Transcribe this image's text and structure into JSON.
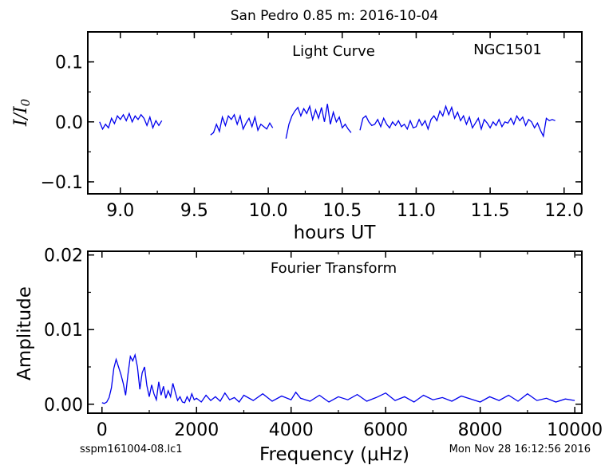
{
  "figure": {
    "title": "San Pedro 0.85 m:  2016-10-04",
    "footer_left": "sspm161004-08.lc1",
    "footer_right": "Mon Nov 28 16:12:56 2016"
  },
  "chart_data": [
    {
      "type": "line",
      "panel": "light-curve",
      "label": "Light Curve",
      "object_label": "NGC1501",
      "xlabel": "hours UT",
      "ylabel": "I/I0",
      "xlim": [
        8.78,
        12.12
      ],
      "ylim": [
        -0.12,
        0.15
      ],
      "x_ticks": [
        9.0,
        9.5,
        10.0,
        10.5,
        11.0,
        11.5,
        12.0
      ],
      "x_tick_labels": [
        "9.0",
        "9.5",
        "10.0",
        "10.5",
        "11.0",
        "11.5",
        "12.0"
      ],
      "y_ticks": [
        -0.1,
        0.0,
        0.1
      ],
      "y_tick_labels": [
        "−0.1",
        "0.0",
        "0.1"
      ],
      "color": "#0000ee",
      "segments": [
        {
          "x": [
            8.86,
            8.88,
            8.9,
            8.92,
            8.94,
            8.96,
            8.98,
            9.0,
            9.02,
            9.04,
            9.06,
            9.08,
            9.1,
            9.12,
            9.14,
            9.16,
            9.18,
            9.2,
            9.22,
            9.24,
            9.26,
            9.28
          ],
          "y": [
            0.0,
            -0.012,
            -0.004,
            -0.01,
            0.006,
            -0.003,
            0.01,
            0.004,
            0.012,
            0.002,
            0.014,
            0.0,
            0.01,
            0.004,
            0.012,
            0.006,
            -0.006,
            0.008,
            -0.01,
            0.002,
            -0.006,
            0.002
          ]
        },
        {
          "x": [
            9.61,
            9.63,
            9.65,
            9.67,
            9.69,
            9.71,
            9.73,
            9.75,
            9.77,
            9.79,
            9.81,
            9.83,
            9.85,
            9.87,
            9.89,
            9.91,
            9.93,
            9.95,
            9.97,
            9.99,
            10.01,
            10.03
          ],
          "y": [
            -0.022,
            -0.018,
            -0.004,
            -0.016,
            0.008,
            -0.006,
            0.01,
            0.004,
            0.012,
            -0.004,
            0.01,
            -0.012,
            -0.002,
            0.006,
            -0.008,
            0.008,
            -0.014,
            -0.004,
            -0.008,
            -0.012,
            -0.002,
            -0.01
          ]
        },
        {
          "x": [
            10.12,
            10.14,
            10.16,
            10.18,
            10.2,
            10.22,
            10.24,
            10.26,
            10.28,
            10.3,
            10.32,
            10.34,
            10.36,
            10.38,
            10.4,
            10.42,
            10.44,
            10.46,
            10.48,
            10.5,
            10.52,
            10.54,
            10.56
          ],
          "y": [
            -0.028,
            -0.004,
            0.01,
            0.018,
            0.024,
            0.01,
            0.022,
            0.014,
            0.026,
            0.004,
            0.02,
            0.006,
            0.024,
            0.0,
            0.03,
            -0.004,
            0.016,
            0.0,
            0.008,
            -0.01,
            -0.004,
            -0.012,
            -0.018
          ]
        },
        {
          "x": [
            10.62,
            10.64,
            10.66,
            10.68,
            10.7,
            10.72,
            10.74,
            10.76,
            10.78,
            10.8,
            10.82,
            10.84,
            10.86,
            10.88,
            10.9,
            10.92,
            10.94,
            10.96,
            10.98,
            11.0,
            11.02,
            11.04,
            11.06,
            11.08,
            11.1,
            11.12,
            11.14,
            11.16,
            11.18,
            11.2,
            11.22,
            11.24,
            11.26,
            11.28,
            11.3,
            11.32,
            11.34,
            11.36,
            11.38,
            11.4,
            11.42,
            11.44,
            11.46,
            11.48,
            11.5,
            11.52,
            11.54,
            11.56,
            11.58,
            11.6,
            11.62,
            11.64,
            11.66,
            11.68,
            11.7,
            11.72,
            11.74,
            11.76,
            11.78,
            11.8,
            11.82,
            11.84,
            11.86,
            11.88,
            11.9,
            11.92,
            11.94
          ],
          "y": [
            -0.014,
            0.006,
            0.01,
            0.0,
            -0.006,
            -0.004,
            0.004,
            -0.008,
            0.006,
            -0.004,
            -0.01,
            0.0,
            -0.006,
            0.002,
            -0.008,
            -0.004,
            -0.012,
            0.002,
            -0.01,
            -0.008,
            0.004,
            -0.006,
            0.002,
            -0.012,
            0.004,
            0.01,
            0.002,
            0.018,
            0.01,
            0.026,
            0.012,
            0.024,
            0.006,
            0.016,
            0.002,
            0.01,
            -0.004,
            0.008,
            -0.01,
            -0.002,
            0.006,
            -0.012,
            0.004,
            -0.002,
            -0.01,
            0.0,
            -0.006,
            0.004,
            -0.008,
            0.0,
            -0.002,
            0.006,
            -0.004,
            0.01,
            0.002,
            0.008,
            -0.006,
            0.004,
            0.0,
            -0.01,
            -0.002,
            -0.014,
            -0.024,
            0.006,
            0.002,
            0.004,
            0.002
          ]
        }
      ]
    },
    {
      "type": "line",
      "panel": "fourier-transform",
      "label": "Fourier Transform",
      "xlabel": "Frequency (μHz)",
      "ylabel": "Amplitude",
      "xlim": [
        -300,
        10150
      ],
      "ylim": [
        -0.0012,
        0.0205
      ],
      "x_ticks": [
        0,
        2000,
        4000,
        6000,
        8000,
        10000
      ],
      "x_tick_labels": [
        "0",
        "2000",
        "4000",
        "6000",
        "8000",
        "10000"
      ],
      "y_ticks": [
        0.0,
        0.01,
        0.02
      ],
      "y_tick_labels": [
        "0.00",
        "0.01",
        "0.02"
      ],
      "color": "#0000ee",
      "x": [
        0,
        50,
        100,
        150,
        200,
        250,
        300,
        350,
        400,
        450,
        500,
        550,
        600,
        650,
        700,
        750,
        800,
        850,
        900,
        950,
        1000,
        1050,
        1100,
        1150,
        1200,
        1250,
        1300,
        1350,
        1400,
        1450,
        1500,
        1550,
        1600,
        1650,
        1700,
        1750,
        1800,
        1850,
        1900,
        1950,
        2000,
        2100,
        2200,
        2300,
        2400,
        2500,
        2600,
        2700,
        2800,
        2900,
        3000,
        3200,
        3400,
        3600,
        3800,
        4000,
        4100,
        4200,
        4400,
        4600,
        4800,
        5000,
        5200,
        5400,
        5600,
        5800,
        6000,
        6200,
        6400,
        6600,
        6800,
        7000,
        7200,
        7400,
        7600,
        7800,
        8000,
        8200,
        8400,
        8600,
        8800,
        9000,
        9200,
        9400,
        9600,
        9800,
        10000
      ],
      "y": [
        0.0002,
        0.0001,
        0.0003,
        0.0009,
        0.0022,
        0.0048,
        0.006,
        0.005,
        0.004,
        0.0028,
        0.0012,
        0.004,
        0.0064,
        0.0058,
        0.0066,
        0.005,
        0.002,
        0.0042,
        0.005,
        0.0025,
        0.001,
        0.0026,
        0.0014,
        0.0006,
        0.003,
        0.0012,
        0.0024,
        0.0008,
        0.0018,
        0.001,
        0.0028,
        0.0016,
        0.0005,
        0.001,
        0.0003,
        0.0002,
        0.001,
        0.0004,
        0.0014,
        0.0006,
        0.0008,
        0.0003,
        0.0012,
        0.0005,
        0.001,
        0.0004,
        0.0015,
        0.0006,
        0.0009,
        0.0003,
        0.0012,
        0.0005,
        0.0014,
        0.0004,
        0.0011,
        0.0006,
        0.0016,
        0.0008,
        0.0004,
        0.0012,
        0.0003,
        0.001,
        0.0006,
        0.0013,
        0.0004,
        0.0009,
        0.0015,
        0.0005,
        0.001,
        0.0003,
        0.0012,
        0.0006,
        0.0009,
        0.0004,
        0.0011,
        0.0007,
        0.0003,
        0.001,
        0.0005,
        0.0012,
        0.0004,
        0.0014,
        0.0005,
        0.0008,
        0.0003,
        0.0007,
        0.0005
      ]
    }
  ]
}
